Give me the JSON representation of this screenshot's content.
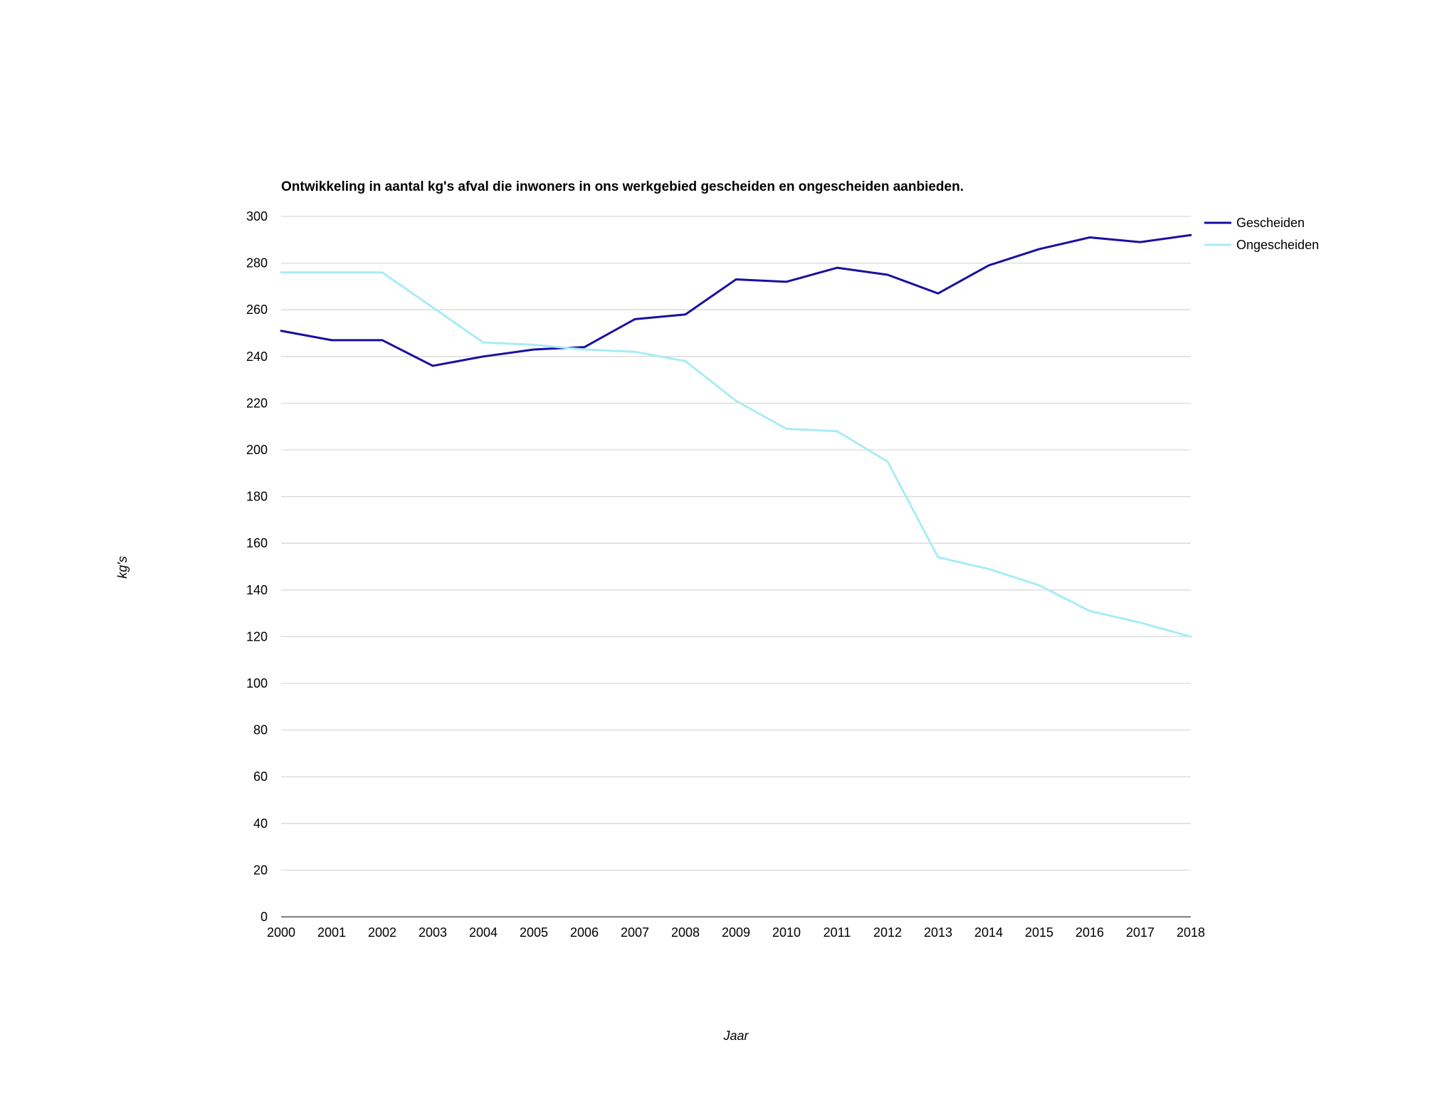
{
  "chart_data": {
    "type": "line",
    "title": "Ontwikkeling in aantal kg's afval die inwoners in ons werkgebied gescheiden en ongescheiden aanbieden.",
    "xlabel": "Jaar",
    "ylabel": "kg's",
    "x": [
      "2000",
      "2001",
      "2002",
      "2003",
      "2004",
      "2005",
      "2006",
      "2007",
      "2008",
      "2009",
      "2010",
      "2011",
      "2012",
      "2013",
      "2014",
      "2015",
      "2016",
      "2017",
      "2018"
    ],
    "ylim": [
      0,
      300
    ],
    "yticks": [
      "0",
      "20",
      "40",
      "60",
      "80",
      "100",
      "120",
      "140",
      "160",
      "180",
      "200",
      "220",
      "240",
      "260",
      "280",
      "300"
    ],
    "grid": true,
    "legend_position": "top-right",
    "series": [
      {
        "name": "Gescheiden",
        "color": "#1a0f9e",
        "values": [
          251,
          247,
          247,
          236,
          240,
          243,
          244,
          256,
          258,
          273,
          272,
          278,
          275,
          267,
          279,
          286,
          291,
          289,
          292
        ]
      },
      {
        "name": "Ongescheiden",
        "color": "#a8ecf5",
        "values": [
          276,
          276,
          276,
          261,
          246,
          245,
          243,
          242,
          238,
          221,
          209,
          208,
          195,
          154,
          149,
          142,
          131,
          126,
          120
        ]
      }
    ]
  }
}
